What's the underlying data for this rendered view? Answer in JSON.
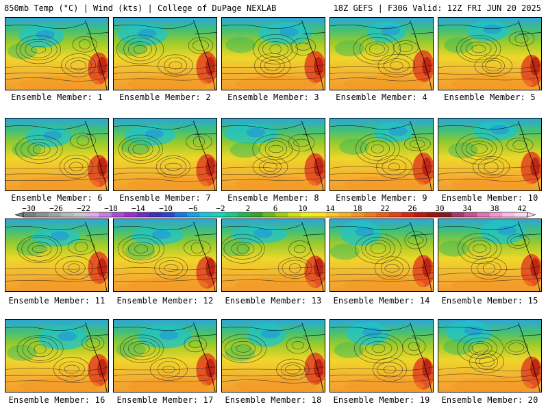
{
  "header": {
    "title_left": "850mb Temp (°C) | Wind (kts) | College of DuPage NEXLAB",
    "title_right": "18Z GEFS | F306 Valid: 12Z FRI JUN 20 2025"
  },
  "colorbar": {
    "tick_labels": [
      "−30",
      "−26",
      "−22",
      "−18",
      "−14",
      "−10",
      "−6",
      "−2",
      "2",
      "6",
      "10",
      "14",
      "18",
      "22",
      "26",
      "30",
      "34",
      "38",
      "42"
    ],
    "colors": [
      "#7c7c7c",
      "#8f8f8f",
      "#a3a3a3",
      "#b8b8b8",
      "#c7c7c7",
      "#e3a9ef",
      "#c47fe0",
      "#a54fd0",
      "#9b2fcc",
      "#6a2fc2",
      "#3b31b8",
      "#2745cf",
      "#1976e0",
      "#14a4e6",
      "#12c8d6",
      "#15d3b4",
      "#17c98a",
      "#1fb55a",
      "#35a12f",
      "#6cb822",
      "#9dcc18",
      "#cde016",
      "#eef01a",
      "#fbe323",
      "#f8c92a",
      "#f6b128",
      "#f39422",
      "#ef7a1d",
      "#ea5e18",
      "#e14314",
      "#cf2a12",
      "#b81a10",
      "#9c130f",
      "#7e1d22",
      "#a03a6a",
      "#c05592",
      "#dc74b7",
      "#ef97d6",
      "#f6bde6",
      "#fad8f0"
    ]
  },
  "panels": [
    {
      "label": "Ensemble Member: 1"
    },
    {
      "label": "Ensemble Member: 2"
    },
    {
      "label": "Ensemble Member: 3"
    },
    {
      "label": "Ensemble Member: 4"
    },
    {
      "label": "Ensemble Member: 5"
    },
    {
      "label": "Ensemble Member: 6"
    },
    {
      "label": "Ensemble Member: 7"
    },
    {
      "label": "Ensemble Member: 8"
    },
    {
      "label": "Ensemble Member: 9"
    },
    {
      "label": "Ensemble Member: 10"
    },
    {
      "label": "Ensemble Member: 11"
    },
    {
      "label": "Ensemble Member: 12"
    },
    {
      "label": "Ensemble Member: 13"
    },
    {
      "label": "Ensemble Member: 14"
    },
    {
      "label": "Ensemble Member: 15"
    },
    {
      "label": "Ensemble Member: 16"
    },
    {
      "label": "Ensemble Member: 17"
    },
    {
      "label": "Ensemble Member: 18"
    },
    {
      "label": "Ensemble Member: 19"
    },
    {
      "label": "Ensemble Member: 20"
    }
  ]
}
